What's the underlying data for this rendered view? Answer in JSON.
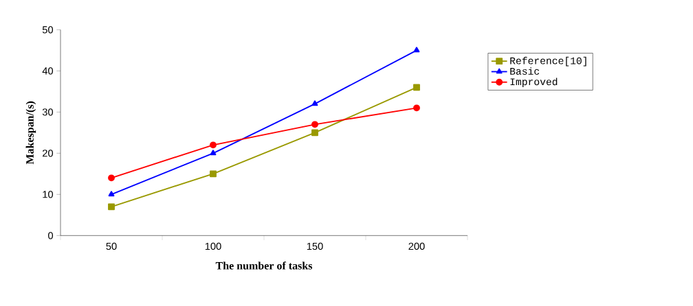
{
  "chart_data": {
    "type": "line",
    "xlabel": "The number of tasks",
    "ylabel": "Makespan/(s)",
    "categories": [
      "50",
      "100",
      "150",
      "200"
    ],
    "series": [
      {
        "name": "Reference[10]",
        "color": "#999900",
        "marker": "square",
        "values": [
          7,
          15,
          25,
          36
        ]
      },
      {
        "name": "Basic",
        "color": "#0000ff",
        "marker": "triangle",
        "values": [
          10,
          20,
          32,
          45
        ]
      },
      {
        "name": "Improved",
        "color": "#ff0000",
        "marker": "circle",
        "values": [
          14,
          22,
          27,
          31
        ]
      }
    ],
    "ylim": [
      0,
      50
    ],
    "yticks": [
      0,
      10,
      20,
      30,
      40,
      50
    ],
    "grid": false,
    "legend": "right"
  }
}
